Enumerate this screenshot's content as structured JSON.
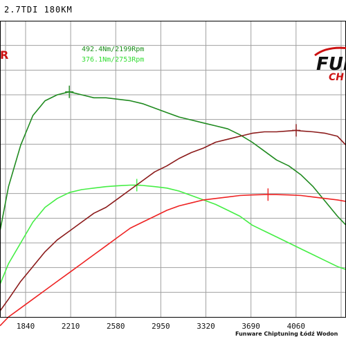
{
  "header": {
    "title": "2.7TDI 180KM"
  },
  "annotations": {
    "tuned_peak": "492.4Nm/2199Rpm",
    "stock_peak": "376.1Nm/2753Rpm",
    "left_marker": "R"
  },
  "logo": {
    "part1": "FUN",
    "part2": "CH"
  },
  "footer": {
    "text": "Funware Chiptuning Łódź Wodon"
  },
  "colors": {
    "tuned_torque": "#1f8a1f",
    "stock_torque": "#44ee44",
    "tuned_power": "#8b1a1a",
    "stock_power": "#ee2222",
    "grid": "#a0a0a0",
    "border": "#000000"
  },
  "chart_data": {
    "type": "line",
    "x_ticks": [
      "1840",
      "2210",
      "2580",
      "2950",
      "3320",
      "3690",
      "4060"
    ],
    "xlim": [
      1630,
      4470
    ],
    "series": [
      {
        "id": "tuned_torque",
        "x": [
          1630,
          1700,
          1800,
          1900,
          2000,
          2100,
          2199,
          2300,
          2400,
          2500,
          2600,
          2700,
          2800,
          2900,
          3000,
          3100,
          3200,
          3300,
          3400,
          3500,
          3600,
          3700,
          3800,
          3900,
          4000,
          4100,
          4200,
          4300,
          4400,
          4470
        ],
        "y_norm": [
          0.29,
          0.44,
          0.58,
          0.68,
          0.73,
          0.75,
          0.76,
          0.75,
          0.74,
          0.74,
          0.735,
          0.73,
          0.72,
          0.705,
          0.69,
          0.675,
          0.665,
          0.655,
          0.645,
          0.635,
          0.615,
          0.59,
          0.56,
          0.53,
          0.51,
          0.48,
          0.44,
          0.39,
          0.34,
          0.31
        ],
        "marker_x": 2199
      },
      {
        "id": "stock_torque",
        "x": [
          1630,
          1700,
          1800,
          1900,
          2000,
          2100,
          2200,
          2300,
          2400,
          2500,
          2600,
          2700,
          2753,
          2800,
          2900,
          3000,
          3100,
          3200,
          3300,
          3400,
          3500,
          3600,
          3700,
          3800,
          3900,
          4000,
          4100,
          4200,
          4300,
          4400,
          4470
        ],
        "y_norm": [
          0.11,
          0.18,
          0.25,
          0.32,
          0.37,
          0.4,
          0.42,
          0.43,
          0.435,
          0.44,
          0.443,
          0.445,
          0.445,
          0.444,
          0.44,
          0.435,
          0.425,
          0.41,
          0.395,
          0.38,
          0.36,
          0.34,
          0.31,
          0.29,
          0.27,
          0.25,
          0.23,
          0.21,
          0.19,
          0.17,
          0.16
        ],
        "marker_x": 2753
      },
      {
        "id": "tuned_power",
        "x": [
          1630,
          1700,
          1800,
          1900,
          2000,
          2100,
          2200,
          2300,
          2400,
          2500,
          2600,
          2700,
          2800,
          2900,
          3000,
          3100,
          3200,
          3300,
          3400,
          3500,
          3600,
          3700,
          3800,
          3900,
          4000,
          4061,
          4100,
          4200,
          4300,
          4400,
          4470
        ],
        "y_norm": [
          0.02,
          0.06,
          0.12,
          0.17,
          0.22,
          0.26,
          0.29,
          0.32,
          0.35,
          0.37,
          0.4,
          0.43,
          0.46,
          0.49,
          0.51,
          0.535,
          0.555,
          0.57,
          0.59,
          0.6,
          0.61,
          0.62,
          0.625,
          0.625,
          0.628,
          0.63,
          0.628,
          0.625,
          0.62,
          0.61,
          0.58
        ],
        "marker_x": 4061
      },
      {
        "id": "stock_power",
        "x": [
          1630,
          1700,
          1800,
          1900,
          2000,
          2100,
          2200,
          2300,
          2400,
          2500,
          2600,
          2700,
          2800,
          2900,
          3000,
          3100,
          3200,
          3300,
          3400,
          3500,
          3600,
          3700,
          3800,
          3830,
          3900,
          4000,
          4100,
          4200,
          4300,
          4400,
          4470
        ],
        "y_norm": [
          -0.03,
          0.0,
          0.03,
          0.06,
          0.09,
          0.12,
          0.15,
          0.18,
          0.21,
          0.24,
          0.27,
          0.3,
          0.32,
          0.34,
          0.36,
          0.375,
          0.385,
          0.395,
          0.4,
          0.405,
          0.41,
          0.412,
          0.413,
          0.413,
          0.413,
          0.412,
          0.41,
          0.405,
          0.4,
          0.395,
          0.39
        ],
        "marker_x": 3830
      }
    ]
  }
}
